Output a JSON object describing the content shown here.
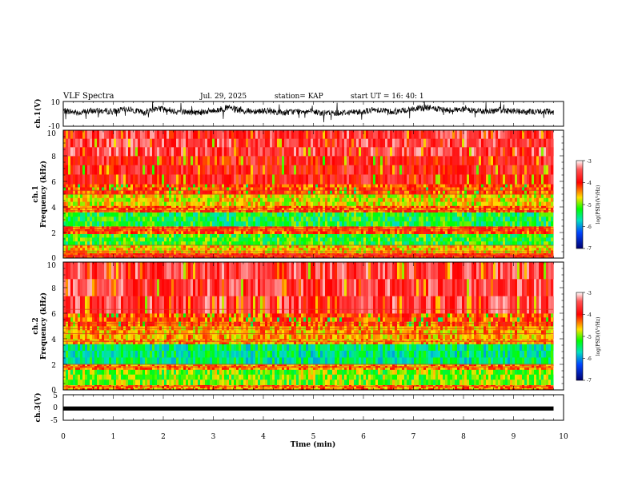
{
  "header": {
    "title": "VLF Spectra",
    "date": "Jul. 29, 2025",
    "station": "station= KAP",
    "start": "start UT =  16: 40: 1"
  },
  "chart_data": [
    {
      "type": "line",
      "panel": "ch1-waveform",
      "ylabel": "ch.1(V)",
      "ylim": [
        -10,
        10
      ],
      "yticks": [
        "10",
        "-10"
      ],
      "xlim": [
        0,
        10
      ],
      "data_end_min": 9.8,
      "series": [
        {
          "approx_baseline_v": [
            [
              0.0,
              2.5
            ],
            [
              0.3,
              1.0
            ],
            [
              0.6,
              2.5
            ],
            [
              1.0,
              2.0
            ],
            [
              1.3,
              4.0
            ],
            [
              1.6,
              1.0
            ],
            [
              1.9,
              5.0
            ],
            [
              2.2,
              2.5
            ],
            [
              2.6,
              1.0
            ],
            [
              3.0,
              2.5
            ],
            [
              3.3,
              5.0
            ],
            [
              3.6,
              2.0
            ],
            [
              4.0,
              2.5
            ],
            [
              4.4,
              1.0
            ],
            [
              4.8,
              2.5
            ],
            [
              5.2,
              0.5
            ],
            [
              5.6,
              1.0
            ],
            [
              6.0,
              2.0
            ],
            [
              6.3,
              3.5
            ],
            [
              6.6,
              1.5
            ],
            [
              7.0,
              4.0
            ],
            [
              7.3,
              5.0
            ],
            [
              7.6,
              3.0
            ],
            [
              8.0,
              3.5
            ],
            [
              8.4,
              2.0
            ],
            [
              8.8,
              3.0
            ],
            [
              9.2,
              1.5
            ],
            [
              9.6,
              2.0
            ],
            [
              9.8,
              1.5
            ]
          ]
        }
      ]
    },
    {
      "type": "heatmap",
      "panel": "ch1-spectrogram",
      "ylabel": "ch.1\nFrequency (kHz)",
      "ylim": [
        0,
        10
      ],
      "yticks": [
        "0",
        "2",
        "4",
        "6",
        "8",
        "10"
      ],
      "xlim": [
        0,
        10
      ],
      "data_end_min": 9.8,
      "colorbar": {
        "label": "log(PSD)(V²/Hz)",
        "range": [
          -7,
          -3
        ],
        "ticks": [
          "-3",
          "-4",
          "-5",
          "-6",
          "-7"
        ]
      },
      "bands_khz_log_psd": [
        [
          0.0,
          0.4,
          -4.0
        ],
        [
          0.4,
          1.0,
          -4.6
        ],
        [
          1.0,
          1.9,
          -5.2
        ],
        [
          1.9,
          2.5,
          -4.2
        ],
        [
          2.5,
          3.6,
          -5.3
        ],
        [
          3.6,
          4.1,
          -4.3
        ],
        [
          4.1,
          5.0,
          -4.7
        ],
        [
          5.0,
          5.8,
          -4.2
        ],
        [
          5.8,
          8.0,
          -3.8
        ],
        [
          8.0,
          10.0,
          -3.6
        ]
      ],
      "lines_khz": [
        0.2,
        0.5,
        1.0,
        2.2,
        2.4,
        3.7,
        3.9,
        5.0,
        5.3
      ]
    },
    {
      "type": "heatmap",
      "panel": "ch2-spectrogram",
      "ylabel": "ch.2\nFrequency (kHz)",
      "ylim": [
        0,
        10
      ],
      "yticks": [
        "0",
        "2",
        "4",
        "6",
        "8",
        "10"
      ],
      "xlim": [
        0,
        10
      ],
      "data_end_min": 9.8,
      "colorbar": {
        "label": "log(PSD)(V²/Hz)",
        "range": [
          -7,
          -3
        ],
        "ticks": [
          "-3",
          "-4",
          "-5",
          "-6",
          "-7"
        ]
      },
      "bands_khz_log_psd": [
        [
          0.0,
          0.4,
          -4.4
        ],
        [
          0.4,
          1.6,
          -5.0
        ],
        [
          1.6,
          2.0,
          -4.4
        ],
        [
          2.0,
          3.6,
          -5.5
        ],
        [
          3.6,
          4.0,
          -4.5
        ],
        [
          4.0,
          5.0,
          -4.5
        ],
        [
          5.0,
          6.0,
          -4.2
        ],
        [
          6.0,
          10.0,
          -3.6
        ]
      ],
      "lines_khz": [
        0.3,
        1.8,
        2.0,
        3.8,
        4.4,
        4.8,
        5.2,
        6.3
      ]
    },
    {
      "type": "line",
      "panel": "ch3-waveform",
      "ylabel": "ch.3(V)",
      "ylim": [
        -5,
        5
      ],
      "yticks": [
        "5",
        "0",
        "-5"
      ],
      "xlim": [
        0,
        10
      ],
      "data_end_min": 9.8,
      "series": [
        {
          "band_v": [
            -1.2,
            0.4
          ]
        }
      ],
      "xlabel": "Time (min)",
      "xticks": [
        "0",
        "1",
        "2",
        "3",
        "4",
        "5",
        "6",
        "7",
        "8",
        "9",
        "10"
      ]
    }
  ]
}
